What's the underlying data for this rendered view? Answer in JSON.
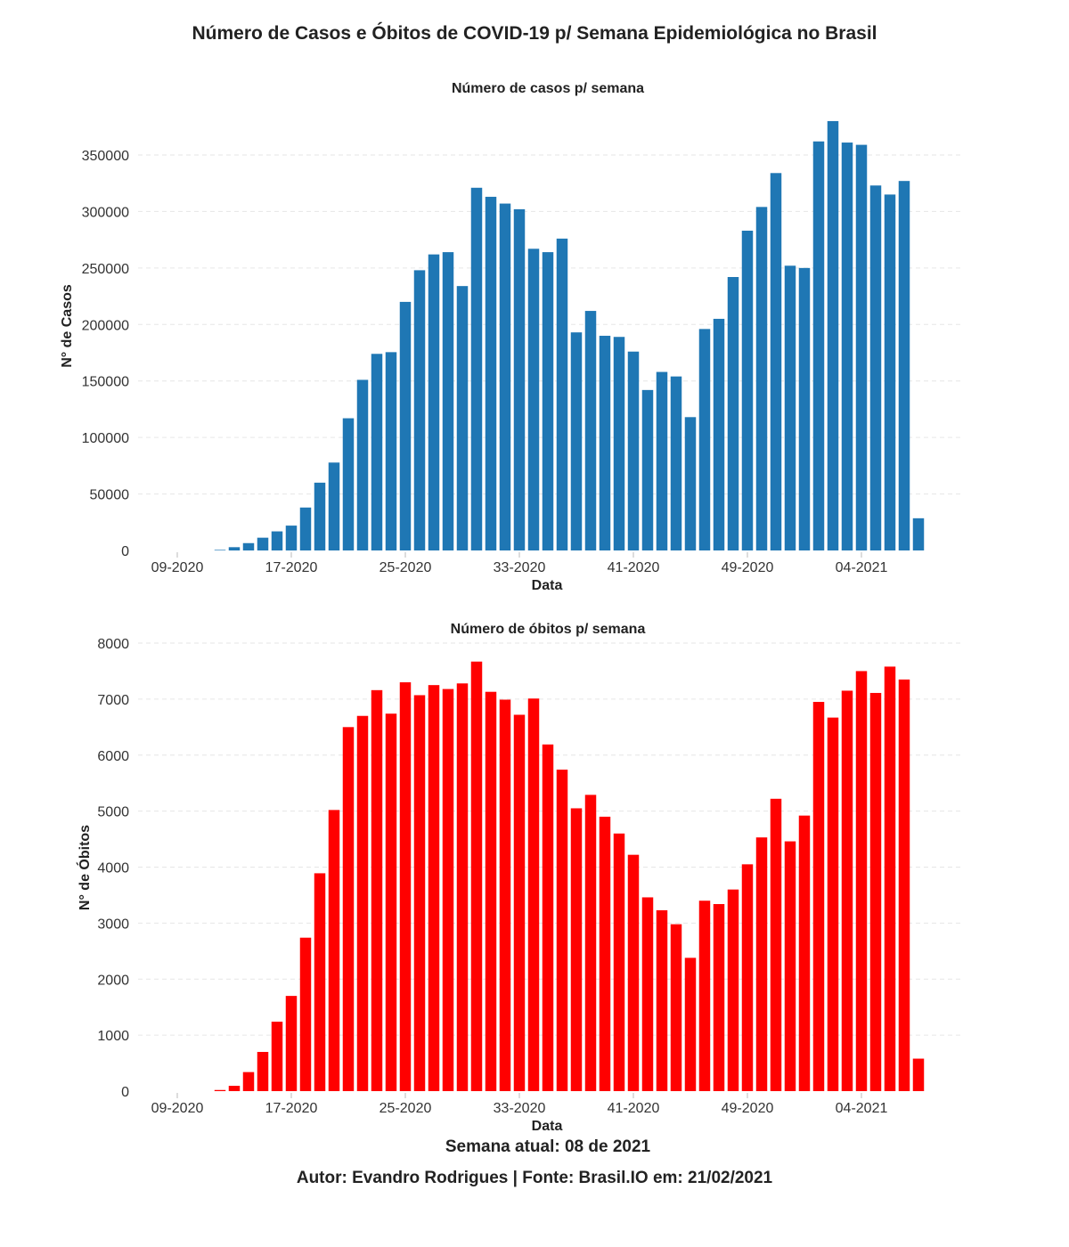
{
  "title": "Número de Casos e Óbitos de COVID-19 p/ Semana Epidemiológica no Brasil",
  "footer": {
    "week": "Semana atual: 08 de 2021",
    "source": "Autor: Evandro Rodrigues | Fonte: Brasil.IO em: 21/02/2021"
  },
  "chart_data": [
    {
      "type": "bar",
      "title": "Número de casos p/ semana",
      "xlabel": "Data",
      "ylabel": "N° de Casos",
      "color": "#1f77b4",
      "ylim": [
        0,
        380000
      ],
      "yticks": [
        0,
        50000,
        100000,
        150000,
        200000,
        250000,
        300000,
        350000
      ],
      "xtick_labels": [
        "09-2020",
        "17-2020",
        "25-2020",
        "33-2020",
        "41-2020",
        "49-2020",
        "04-2021"
      ],
      "grid": true,
      "categories": [
        "09-2020",
        "10-2020",
        "11-2020",
        "12-2020",
        "13-2020",
        "14-2020",
        "15-2020",
        "16-2020",
        "17-2020",
        "18-2020",
        "19-2020",
        "20-2020",
        "21-2020",
        "22-2020",
        "23-2020",
        "24-2020",
        "25-2020",
        "26-2020",
        "27-2020",
        "28-2020",
        "29-2020",
        "30-2020",
        "31-2020",
        "32-2020",
        "33-2020",
        "34-2020",
        "35-2020",
        "36-2020",
        "37-2020",
        "38-2020",
        "39-2020",
        "40-2020",
        "41-2020",
        "42-2020",
        "43-2020",
        "44-2020",
        "45-2020",
        "46-2020",
        "47-2020",
        "48-2020",
        "49-2020",
        "50-2020",
        "51-2020",
        "52-2020",
        "53-2020",
        "01-2021",
        "02-2021",
        "03-2021",
        "04-2021",
        "05-2021",
        "06-2021",
        "07-2021",
        "08-2021"
      ],
      "values": [
        0,
        0,
        0,
        500,
        2900,
        6500,
        11300,
        16900,
        22000,
        38000,
        60000,
        77800,
        117000,
        151000,
        174000,
        175500,
        220000,
        248000,
        262000,
        264000,
        234000,
        321000,
        313000,
        307000,
        302000,
        267000,
        264000,
        276000,
        193000,
        212000,
        190000,
        189000,
        176000,
        142000,
        158000,
        154000,
        118000,
        196000,
        205000,
        242000,
        283000,
        304000,
        334000,
        252000,
        250000,
        362000,
        380000,
        361000,
        359000,
        323000,
        315000,
        327000,
        28500
      ]
    },
    {
      "type": "bar",
      "title": "Número de óbitos p/ semana",
      "xlabel": "Data",
      "ylabel": "N° de Óbitos",
      "color": "#ff0000",
      "ylim": [
        0,
        8000
      ],
      "yticks": [
        0,
        1000,
        2000,
        3000,
        4000,
        5000,
        6000,
        7000,
        8000
      ],
      "xtick_labels": [
        "09-2020",
        "17-2020",
        "25-2020",
        "33-2020",
        "41-2020",
        "49-2020",
        "04-2021"
      ],
      "grid": true,
      "categories": [
        "09-2020",
        "10-2020",
        "11-2020",
        "12-2020",
        "13-2020",
        "14-2020",
        "15-2020",
        "16-2020",
        "17-2020",
        "18-2020",
        "19-2020",
        "20-2020",
        "21-2020",
        "22-2020",
        "23-2020",
        "24-2020",
        "25-2020",
        "26-2020",
        "27-2020",
        "28-2020",
        "29-2020",
        "30-2020",
        "31-2020",
        "32-2020",
        "33-2020",
        "34-2020",
        "35-2020",
        "36-2020",
        "37-2020",
        "38-2020",
        "39-2020",
        "40-2020",
        "41-2020",
        "42-2020",
        "43-2020",
        "44-2020",
        "45-2020",
        "46-2020",
        "47-2020",
        "48-2020",
        "49-2020",
        "50-2020",
        "51-2020",
        "52-2020",
        "53-2020",
        "01-2021",
        "02-2021",
        "03-2021",
        "04-2021",
        "05-2021",
        "06-2021",
        "07-2021",
        "08-2021"
      ],
      "values": [
        0,
        0,
        0,
        20,
        95,
        340,
        700,
        1240,
        1700,
        2740,
        3890,
        5020,
        6500,
        6700,
        7160,
        6740,
        7300,
        7070,
        7250,
        7180,
        7280,
        7670,
        7130,
        6990,
        6720,
        7010,
        6190,
        5740,
        5050,
        5290,
        4900,
        4600,
        4220,
        3460,
        3230,
        2980,
        2380,
        3400,
        3340,
        3600,
        4050,
        4530,
        5220,
        4460,
        4920,
        6950,
        6670,
        7150,
        7500,
        7110,
        7580,
        7350,
        580
      ]
    }
  ]
}
